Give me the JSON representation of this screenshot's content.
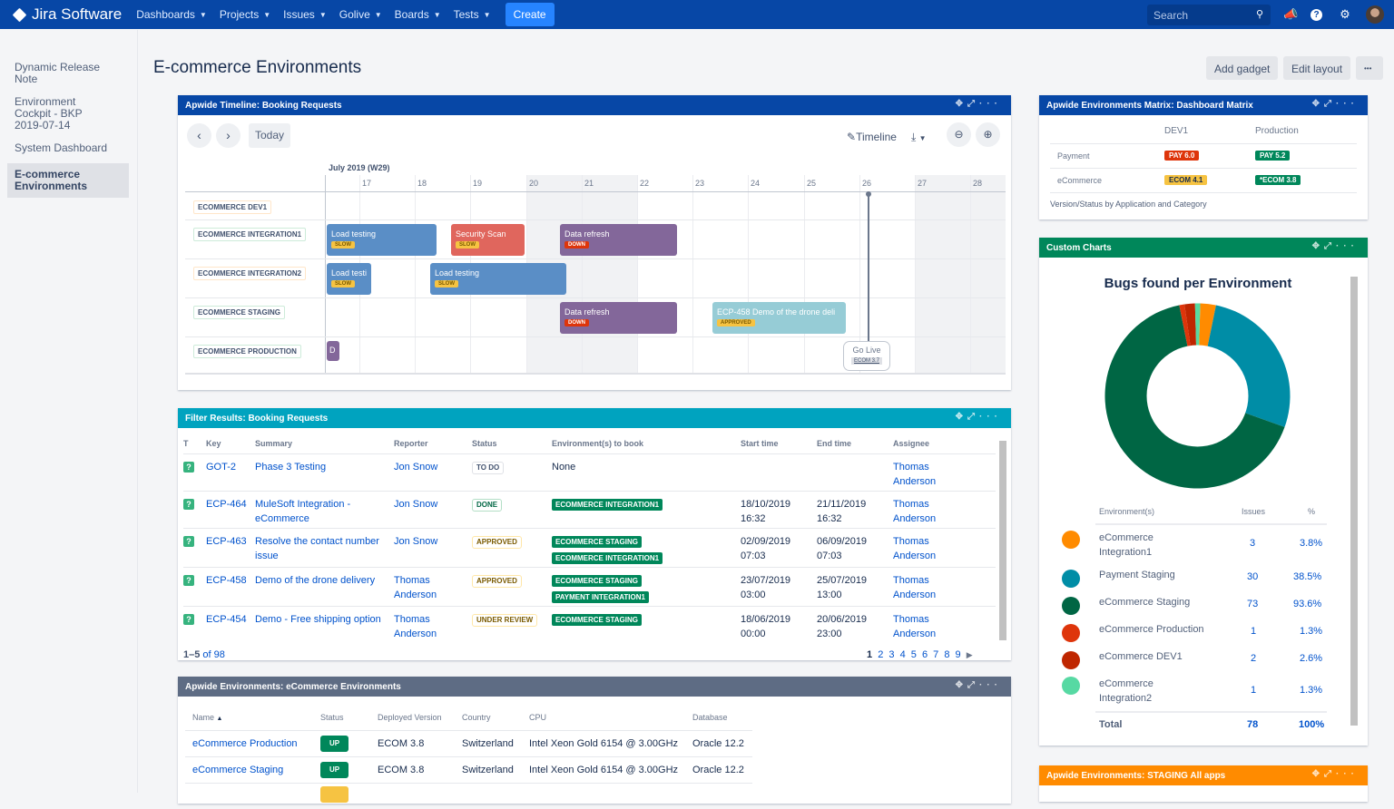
{
  "topbar": {
    "brand": "Jira Software",
    "nav": [
      "Dashboards",
      "Projects",
      "Issues",
      "Golive",
      "Boards",
      "Tests"
    ],
    "create_label": "Create",
    "search_placeholder": "Search",
    "icons": [
      "megaphone-icon",
      "help-icon",
      "settings-icon"
    ]
  },
  "sidebar": {
    "items": [
      {
        "label": "Dynamic Release Note"
      },
      {
        "label": "Environment Cockpit - BKP 2019-07-14"
      },
      {
        "label": "System Dashboard"
      },
      {
        "label": "E-commerce Environments",
        "active": true
      }
    ]
  },
  "page": {
    "title": "E-commerce Environments",
    "add_gadget": "Add gadget",
    "edit_layout": "Edit layout",
    "more": "•••"
  },
  "timeline": {
    "title": "Apwide Timeline: Booking Requests",
    "today": "Today",
    "timeline_label": "Timeline",
    "month": "July 2019 (W29)",
    "days": [
      "17",
      "18",
      "19",
      "20",
      "21",
      "22",
      "23",
      "24",
      "25",
      "26",
      "27",
      "28"
    ],
    "rows": [
      "ECOMMERCE DEV1",
      "ECOMMERCE INTEGRATION1",
      "ECOMMERCE INTEGRATION2",
      "ECOMMERCE STAGING",
      "ECOMMERCE PRODUCTION"
    ],
    "bars": [
      {
        "label": "Load testing",
        "tag": "SLOW"
      },
      {
        "label": "Security Scan",
        "tag": "SLOW"
      },
      {
        "label": "Data refresh",
        "tag": "DOWN"
      },
      {
        "label": "Load testi",
        "tag": "SLOW"
      },
      {
        "label": "Load testing",
        "tag": "SLOW"
      },
      {
        "label": "Data refresh",
        "tag": "DOWN"
      },
      {
        "label": "ECP-458 Demo of the drone deli",
        "tag": "APPROVED"
      },
      {
        "label": "D",
        "tag": ""
      }
    ],
    "milestone": {
      "label": "Go Live",
      "version": "ECOM 3.7"
    }
  },
  "filter": {
    "title": "Filter Results: Booking Requests",
    "columns": [
      "T",
      "Key",
      "Summary",
      "Reporter",
      "Status",
      "Environment(s) to book",
      "Start time",
      "End time",
      "Assignee"
    ],
    "rows": [
      {
        "key": "GOT-2",
        "summary": "Phase 3 Testing",
        "reporter": "Jon Snow",
        "status": "TO DO",
        "envs": [],
        "env_none": "None",
        "start": "",
        "start_time": "",
        "end": "",
        "end_time": "",
        "assignee1": "Thomas",
        "assignee2": "Anderson"
      },
      {
        "key": "ECP-464",
        "summary": "MuleSoft Integration - eCommerce",
        "reporter": "Jon Snow",
        "status": "DONE",
        "envs": [
          "ECOMMERCE INTEGRATION1"
        ],
        "start": "18/10/2019",
        "start_time": "16:32",
        "end": "21/11/2019",
        "end_time": "16:32",
        "assignee1": "Thomas",
        "assignee2": "Anderson"
      },
      {
        "key": "ECP-463",
        "summary": "Resolve the contact number issue",
        "reporter": "Jon Snow",
        "status": "APPROVED",
        "envs": [
          "ECOMMERCE STAGING",
          "ECOMMERCE INTEGRATION1"
        ],
        "start": "02/09/2019",
        "start_time": "07:03",
        "end": "06/09/2019",
        "end_time": "07:03",
        "assignee1": "Thomas",
        "assignee2": "Anderson"
      },
      {
        "key": "ECP-458",
        "summary": "Demo of the drone delivery",
        "reporter": "Thomas Anderson",
        "status": "APPROVED",
        "envs": [
          "ECOMMERCE STAGING",
          "PAYMENT INTEGRATION1"
        ],
        "start": "23/07/2019",
        "start_time": "03:00",
        "end": "25/07/2019",
        "end_time": "13:00",
        "assignee1": "Thomas",
        "assignee2": "Anderson"
      },
      {
        "key": "ECP-454",
        "summary": "Demo - Free shipping option",
        "reporter": "Thomas Anderson",
        "status": "UNDER REVIEW",
        "envs": [
          "ECOMMERCE STAGING"
        ],
        "start": "18/06/2019",
        "start_time": "00:00",
        "end": "20/06/2019",
        "end_time": "23:00",
        "assignee1": "Thomas",
        "assignee2": "Anderson"
      }
    ],
    "count_range": "1–5",
    "count_of": "of 98",
    "pages": [
      "1",
      "2",
      "3",
      "4",
      "5",
      "6",
      "7",
      "8",
      "9"
    ]
  },
  "envs": {
    "title": "Apwide Environments: eCommerce Environments",
    "columns": [
      "Name",
      "Status",
      "Deployed Version",
      "Country",
      "CPU",
      "Database"
    ],
    "rows": [
      {
        "name": "eCommerce Production",
        "status": "UP",
        "version": "ECOM 3.8",
        "country": "Switzerland",
        "cpu": "Intel Xeon Gold 6154 @ 3.00GHz",
        "db": "Oracle 12.2"
      },
      {
        "name": "eCommerce Staging",
        "status": "UP",
        "version": "ECOM 3.8",
        "country": "Switzerland",
        "cpu": "Intel Xeon Gold 6154 @ 3.00GHz",
        "db": "Oracle 12.2"
      }
    ]
  },
  "matrix": {
    "title": "Apwide Environments Matrix: Dashboard Matrix",
    "columns": [
      "DEV1",
      "Production"
    ],
    "rows": [
      {
        "app": "Payment",
        "dev1": "PAY 6.0",
        "prod": "PAY 5.2"
      },
      {
        "app": "eCommerce",
        "dev1": "ECOM 4.1",
        "prod": "*ECOM 3.8"
      }
    ],
    "caption": "Version/Status by Application and Category"
  },
  "custom_charts": {
    "title": "Custom Charts",
    "table_headers": [
      "Environment(s)",
      "Issues",
      "%"
    ],
    "rows": [
      {
        "env": "eCommerce Integration1",
        "issues": "3",
        "pct": "3.8%",
        "color": "#ff8b00"
      },
      {
        "env": "Payment Staging",
        "issues": "30",
        "pct": "38.5%",
        "color": "#008da6"
      },
      {
        "env": "eCommerce Staging",
        "issues": "73",
        "pct": "93.6%",
        "color": "#006644"
      },
      {
        "env": "eCommerce Production",
        "issues": "1",
        "pct": "1.3%",
        "color": "#de350b"
      },
      {
        "env": "eCommerce DEV1",
        "issues": "2",
        "pct": "2.6%",
        "color": "#bf2600"
      },
      {
        "env": "eCommerce Integration2",
        "issues": "1",
        "pct": "1.3%",
        "color": "#57d9a3"
      }
    ],
    "total_label": "Total",
    "total_issues": "78",
    "total_pct": "100%"
  },
  "staging": {
    "title": "Apwide Environments: STAGING All apps"
  },
  "chart_data": {
    "type": "pie",
    "title": "Bugs found per Environment",
    "categories": [
      "eCommerce Integration1",
      "Payment Staging",
      "eCommerce Staging",
      "eCommerce Production",
      "eCommerce DEV1",
      "eCommerce Integration2"
    ],
    "values": [
      3,
      30,
      73,
      1,
      2,
      1
    ],
    "percentages": [
      3.8,
      38.5,
      93.6,
      1.3,
      2.6,
      1.3
    ],
    "colors": [
      "#ff8b00",
      "#008da6",
      "#006644",
      "#de350b",
      "#bf2600",
      "#57d9a3"
    ],
    "donut": true,
    "total": 78,
    "legend_position": "bottom-table"
  }
}
